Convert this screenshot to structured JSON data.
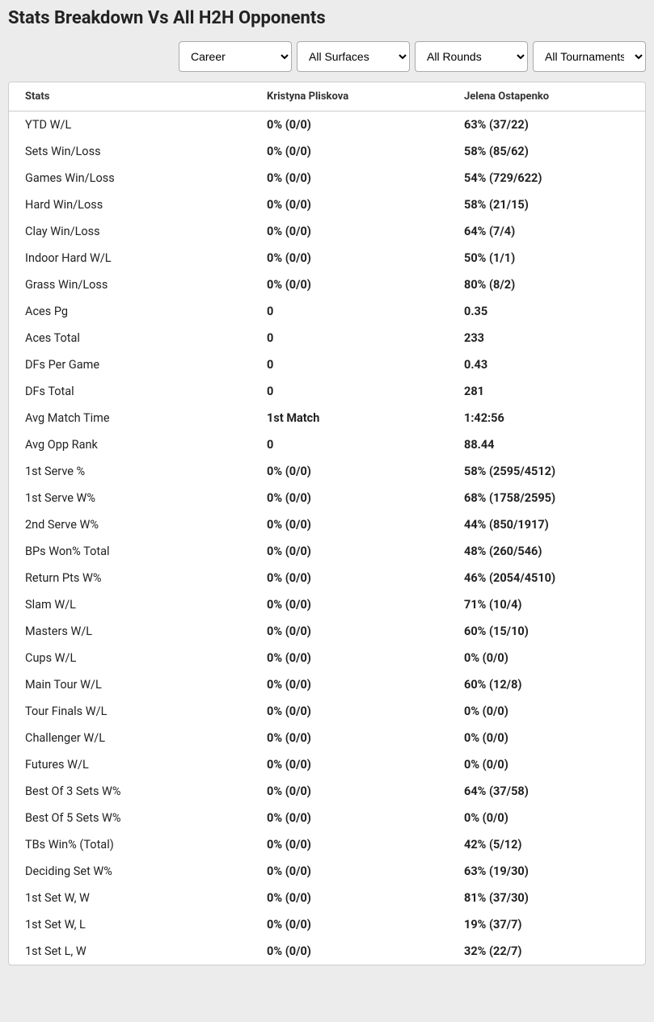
{
  "title": "Stats Breakdown Vs All H2H Opponents",
  "filters": {
    "career": "Career",
    "surfaces": "All Surfaces",
    "rounds": "All Rounds",
    "tournaments": "All Tournaments"
  },
  "headers": {
    "stats": "Stats",
    "player1": "Kristyna Pliskova",
    "player2": "Jelena Ostapenko"
  },
  "rows": [
    {
      "label": "YTD W/L",
      "p1": "0% (0/0)",
      "p2": "63% (37/22)"
    },
    {
      "label": "Sets Win/Loss",
      "p1": "0% (0/0)",
      "p2": "58% (85/62)"
    },
    {
      "label": "Games Win/Loss",
      "p1": "0% (0/0)",
      "p2": "54% (729/622)"
    },
    {
      "label": "Hard Win/Loss",
      "p1": "0% (0/0)",
      "p2": "58% (21/15)"
    },
    {
      "label": "Clay Win/Loss",
      "p1": "0% (0/0)",
      "p2": "64% (7/4)"
    },
    {
      "label": "Indoor Hard W/L",
      "p1": "0% (0/0)",
      "p2": "50% (1/1)"
    },
    {
      "label": "Grass Win/Loss",
      "p1": "0% (0/0)",
      "p2": "80% (8/2)"
    },
    {
      "label": "Aces Pg",
      "p1": "0",
      "p2": "0.35"
    },
    {
      "label": "Aces Total",
      "p1": "0",
      "p2": "233"
    },
    {
      "label": "DFs Per Game",
      "p1": "0",
      "p2": "0.43"
    },
    {
      "label": "DFs Total",
      "p1": "0",
      "p2": "281"
    },
    {
      "label": "Avg Match Time",
      "p1": "1st Match",
      "p2": "1:42:56"
    },
    {
      "label": "Avg Opp Rank",
      "p1": "0",
      "p2": "88.44"
    },
    {
      "label": "1st Serve %",
      "p1": "0% (0/0)",
      "p2": "58% (2595/4512)"
    },
    {
      "label": "1st Serve W%",
      "p1": "0% (0/0)",
      "p2": "68% (1758/2595)"
    },
    {
      "label": "2nd Serve W%",
      "p1": "0% (0/0)",
      "p2": "44% (850/1917)"
    },
    {
      "label": "BPs Won% Total",
      "p1": "0% (0/0)",
      "p2": "48% (260/546)"
    },
    {
      "label": "Return Pts W%",
      "p1": "0% (0/0)",
      "p2": "46% (2054/4510)"
    },
    {
      "label": "Slam W/L",
      "p1": "0% (0/0)",
      "p2": "71% (10/4)"
    },
    {
      "label": "Masters W/L",
      "p1": "0% (0/0)",
      "p2": "60% (15/10)"
    },
    {
      "label": "Cups W/L",
      "p1": "0% (0/0)",
      "p2": "0% (0/0)"
    },
    {
      "label": "Main Tour W/L",
      "p1": "0% (0/0)",
      "p2": "60% (12/8)"
    },
    {
      "label": "Tour Finals W/L",
      "p1": "0% (0/0)",
      "p2": "0% (0/0)"
    },
    {
      "label": "Challenger W/L",
      "p1": "0% (0/0)",
      "p2": "0% (0/0)"
    },
    {
      "label": "Futures W/L",
      "p1": "0% (0/0)",
      "p2": "0% (0/0)"
    },
    {
      "label": "Best Of 3 Sets W%",
      "p1": "0% (0/0)",
      "p2": "64% (37/58)"
    },
    {
      "label": "Best Of 5 Sets W%",
      "p1": "0% (0/0)",
      "p2": "0% (0/0)"
    },
    {
      "label": "TBs Win% (Total)",
      "p1": "0% (0/0)",
      "p2": "42% (5/12)"
    },
    {
      "label": "Deciding Set W%",
      "p1": "0% (0/0)",
      "p2": "63% (19/30)"
    },
    {
      "label": "1st Set W, W",
      "p1": "0% (0/0)",
      "p2": "81% (37/30)"
    },
    {
      "label": "1st Set W, L",
      "p1": "0% (0/0)",
      "p2": "19% (37/7)"
    },
    {
      "label": "1st Set L, W",
      "p1": "0% (0/0)",
      "p2": "32% (22/7)"
    }
  ]
}
